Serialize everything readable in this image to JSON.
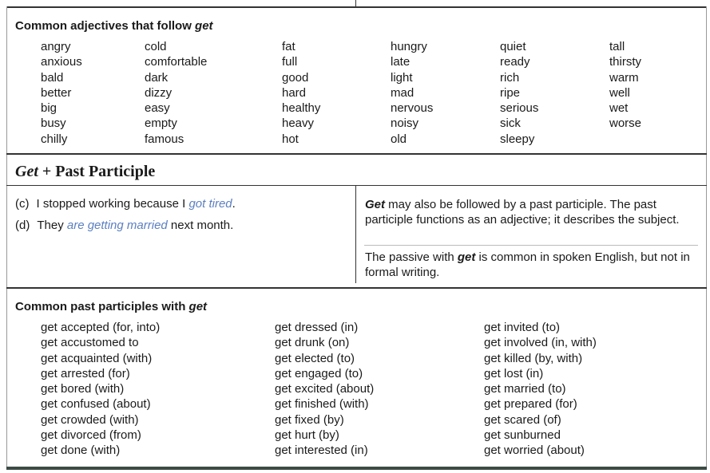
{
  "adjectives": {
    "heading_prefix": "Common adjectives that follow ",
    "heading_em": "get",
    "columns": [
      [
        "angry",
        "anxious",
        "bald",
        "better",
        "big",
        "busy",
        "chilly"
      ],
      [
        "cold",
        "comfortable",
        "dark",
        "dizzy",
        "easy",
        "empty",
        "famous"
      ],
      [
        "fat",
        "full",
        "good",
        "hard",
        "healthy",
        "heavy",
        "hot"
      ],
      [
        "hungry",
        "late",
        "light",
        "mad",
        "nervous",
        "noisy",
        "old"
      ],
      [
        "quiet",
        "ready",
        "rich",
        "ripe",
        "serious",
        "sick",
        "sleepy"
      ],
      [
        "tall",
        "thirsty",
        "warm",
        "well",
        "wet",
        "worse"
      ]
    ]
  },
  "section": {
    "title_em": "Get",
    "title_rest": " + Past Participle"
  },
  "examples": [
    {
      "label": "(c)",
      "before": "I stopped working because I ",
      "highlight": "got tired",
      "after": "."
    },
    {
      "label": "(d)",
      "before": "They ",
      "highlight": "are getting married",
      "after": " next month."
    }
  ],
  "explanation": {
    "p1_em": "Get",
    "p1_rest": " may also be followed by a past participle.  The past participle functions as an adjective; it describes the subject.",
    "p2_before": "The passive with ",
    "p2_em": "get",
    "p2_after": " is common in spoken English, but not in formal writing."
  },
  "participles": {
    "heading_prefix": "Common past participles with ",
    "heading_em": "get",
    "columns": [
      [
        "get accepted (for, into)",
        "get accustomed to",
        "get acquainted (with)",
        "get arrested (for)",
        "get bored (with)",
        "get confused (about)",
        "get crowded (with)",
        "get divorced (from)",
        "get done (with)"
      ],
      [
        "get dressed (in)",
        "get drunk (on)",
        "get elected (to)",
        "get engaged (to)",
        "get excited (about)",
        "get finished (with)",
        "get fixed (by)",
        "get hurt (by)",
        "get interested (in)"
      ],
      [
        "get invited (to)",
        "get involved (in, with)",
        "get killed (by, with)",
        "get lost (in)",
        "get married (to)",
        "get prepared (for)",
        "get scared (of)",
        "get sunburned",
        "get worried (about)"
      ]
    ]
  },
  "colors": {
    "highlight": "#5b7fc0",
    "rule": "#333333",
    "bottom_rule": "#3c4a44"
  }
}
